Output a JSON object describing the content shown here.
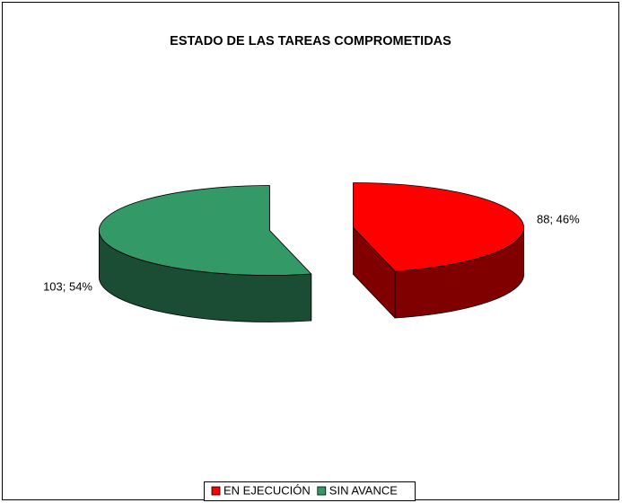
{
  "chart_data": {
    "type": "pie3d",
    "title": "ESTADO DE LAS TAREAS COMPROMETIDAS",
    "series": [
      {
        "name": "EN EJECUCIÓN",
        "color": "#ff0000",
        "values": [
          88
        ],
        "value_labels": [
          "88; 46%"
        ]
      },
      {
        "name": "SIN AVANCE",
        "color": "#339966",
        "values": [
          103
        ],
        "value_labels": [
          "103; 54%"
        ]
      }
    ],
    "legend": "bottom"
  }
}
